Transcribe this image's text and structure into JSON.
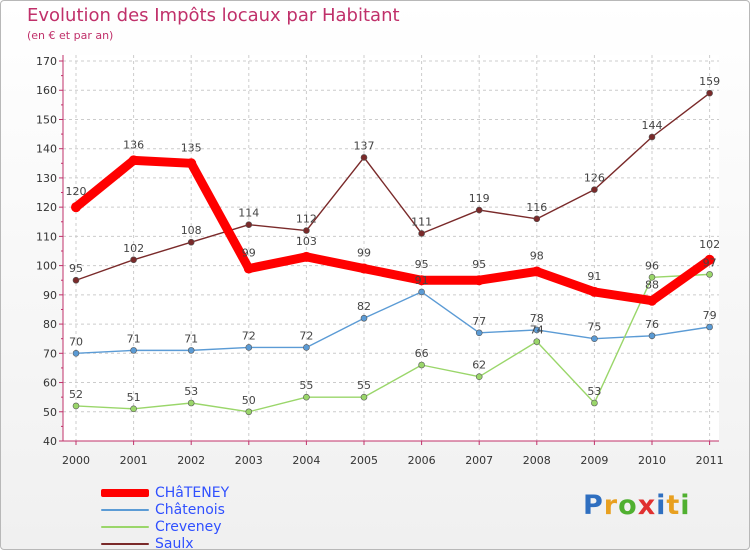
{
  "chart_data": {
    "type": "line",
    "title": "Evolution des Impôts locaux par Habitant",
    "subtitle": "(en € et par an)",
    "categories": [
      "2000",
      "2001",
      "2002",
      "2003",
      "2004",
      "2005",
      "2006",
      "2007",
      "2008",
      "2009",
      "2010",
      "2011"
    ],
    "ylim": [
      40,
      170
    ],
    "yticks": [
      40,
      50,
      60,
      70,
      80,
      90,
      100,
      110,
      120,
      130,
      140,
      150,
      160,
      170
    ],
    "grid": true,
    "legend_position": "bottom-left",
    "series": [
      {
        "name": "CHâTENEY",
        "color": "#ff0000",
        "emphasis": true,
        "values": [
          120,
          136,
          135,
          99,
          103,
          99,
          95,
          95,
          98,
          91,
          88,
          102
        ]
      },
      {
        "name": "Châtenois",
        "color": "#5b9bd5",
        "emphasis": false,
        "values": [
          70,
          71,
          71,
          72,
          72,
          82,
          91,
          77,
          78,
          75,
          76,
          79
        ]
      },
      {
        "name": "Creveney",
        "color": "#9ad66a",
        "emphasis": false,
        "values": [
          52,
          51,
          53,
          50,
          55,
          55,
          66,
          62,
          74,
          53,
          96,
          97
        ]
      },
      {
        "name": "Saulx",
        "color": "#7a2a2a",
        "emphasis": false,
        "values": [
          95,
          102,
          108,
          114,
          112,
          137,
          111,
          119,
          116,
          126,
          144,
          159
        ]
      }
    ]
  },
  "branding": {
    "letters": [
      "P",
      "r",
      "o",
      "x",
      "i",
      "t",
      "i"
    ],
    "colors": [
      "#2f6fc0",
      "#e8a020",
      "#50b030",
      "#e03030",
      "#2f6fc0",
      "#e8a020",
      "#50b030"
    ]
  }
}
